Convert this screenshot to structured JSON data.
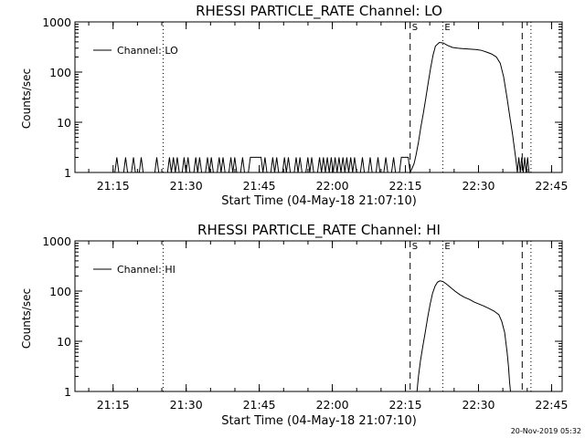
{
  "footer": {
    "timestamp": "20-Nov-2019 05:32"
  },
  "chart_data": [
    {
      "type": "line",
      "title": "RHESSI PARTICLE_RATE Channel: LO",
      "xlabel": "Start Time (04-May-18 21:07:10)",
      "ylabel": "Counts/sec",
      "x_unit": "minutes after 21:07:10",
      "xlim": [
        0,
        100
      ],
      "ylim": [
        1,
        1000
      ],
      "y_scale": "log",
      "x_tick_labels": [
        "21:15",
        "21:30",
        "21:45",
        "22:00",
        "22:15",
        "22:30",
        "22:45"
      ],
      "x_tick_minutes": [
        7.83,
        22.83,
        37.83,
        52.83,
        67.83,
        82.83,
        97.83
      ],
      "y_tick_labels": [
        "1",
        "10",
        "100",
        "1000"
      ],
      "y_tick_values": [
        1,
        10,
        100,
        1000
      ],
      "legend": {
        "label": "Channel: LO",
        "position": "top-left"
      },
      "markers": [
        {
          "label": "S",
          "x": 68.8,
          "style": "dashed"
        },
        {
          "label": "E",
          "x": 75.5,
          "style": "dotted"
        },
        {
          "label": "",
          "x": 91.8,
          "style": "dashed"
        },
        {
          "label": "",
          "x": 93.6,
          "style": "dotted"
        },
        {
          "label": "",
          "x": 18.1,
          "style": "dotted"
        }
      ],
      "series": [
        {
          "name": "Channel: LO",
          "color": "#000000",
          "points": [
            [
              0,
              1
            ],
            [
              8.2,
              1
            ],
            [
              8.6,
              2
            ],
            [
              9.0,
              1
            ],
            [
              10.0,
              1
            ],
            [
              10.4,
              2
            ],
            [
              10.8,
              1
            ],
            [
              11.6,
              1
            ],
            [
              12.0,
              2
            ],
            [
              12.4,
              1
            ],
            [
              13.2,
              1
            ],
            [
              13.6,
              2
            ],
            [
              14.0,
              1
            ],
            [
              16.4,
              1
            ],
            [
              16.8,
              2
            ],
            [
              17.2,
              1
            ],
            [
              19.0,
              1
            ],
            [
              19.4,
              2
            ],
            [
              19.8,
              1
            ],
            [
              20.2,
              2
            ],
            [
              20.6,
              1
            ],
            [
              21.0,
              2
            ],
            [
              21.4,
              1
            ],
            [
              22.0,
              1
            ],
            [
              22.4,
              2
            ],
            [
              22.8,
              1
            ],
            [
              23.2,
              2
            ],
            [
              23.6,
              1
            ],
            [
              24.4,
              1
            ],
            [
              24.8,
              2
            ],
            [
              25.2,
              1
            ],
            [
              25.6,
              2
            ],
            [
              26.0,
              1
            ],
            [
              26.8,
              1
            ],
            [
              27.2,
              2
            ],
            [
              27.6,
              1
            ],
            [
              28.0,
              2
            ],
            [
              28.4,
              1
            ],
            [
              29.2,
              1
            ],
            [
              29.6,
              2
            ],
            [
              30.0,
              1
            ],
            [
              30.4,
              2
            ],
            [
              30.8,
              1
            ],
            [
              31.6,
              1
            ],
            [
              32.0,
              2
            ],
            [
              32.4,
              1
            ],
            [
              32.8,
              2
            ],
            [
              33.2,
              1
            ],
            [
              34.0,
              1
            ],
            [
              34.4,
              2
            ],
            [
              34.8,
              1
            ],
            [
              35.6,
              1
            ],
            [
              36.0,
              2
            ],
            [
              38.2,
              2
            ],
            [
              38.6,
              1
            ],
            [
              39.0,
              2
            ],
            [
              39.4,
              1
            ],
            [
              40.2,
              1
            ],
            [
              40.6,
              2
            ],
            [
              41.0,
              1
            ],
            [
              41.4,
              2
            ],
            [
              41.8,
              1
            ],
            [
              42.6,
              1
            ],
            [
              43.0,
              2
            ],
            [
              43.4,
              1
            ],
            [
              43.8,
              2
            ],
            [
              44.2,
              1
            ],
            [
              45.0,
              1
            ],
            [
              45.4,
              2
            ],
            [
              45.8,
              1
            ],
            [
              46.2,
              2
            ],
            [
              46.6,
              1
            ],
            [
              47.4,
              1
            ],
            [
              47.8,
              2
            ],
            [
              48.2,
              1
            ],
            [
              48.6,
              2
            ],
            [
              49.0,
              1
            ],
            [
              49.8,
              1
            ],
            [
              50.2,
              2
            ],
            [
              50.6,
              1
            ],
            [
              51.0,
              2
            ],
            [
              51.4,
              1
            ],
            [
              51.8,
              2
            ],
            [
              52.2,
              1
            ],
            [
              52.6,
              2
            ],
            [
              53.0,
              1
            ],
            [
              53.4,
              2
            ],
            [
              53.8,
              1
            ],
            [
              54.2,
              2
            ],
            [
              54.6,
              1
            ],
            [
              55.0,
              2
            ],
            [
              55.4,
              1
            ],
            [
              55.8,
              2
            ],
            [
              56.2,
              1
            ],
            [
              56.6,
              2
            ],
            [
              57.0,
              1
            ],
            [
              57.4,
              2
            ],
            [
              57.8,
              1
            ],
            [
              58.6,
              1
            ],
            [
              59.0,
              2
            ],
            [
              59.4,
              1
            ],
            [
              60.2,
              1
            ],
            [
              60.6,
              2
            ],
            [
              61.0,
              1
            ],
            [
              61.8,
              1
            ],
            [
              62.2,
              2
            ],
            [
              62.6,
              1
            ],
            [
              63.4,
              1
            ],
            [
              63.8,
              2
            ],
            [
              64.2,
              1
            ],
            [
              65.0,
              1
            ],
            [
              65.4,
              2
            ],
            [
              65.8,
              1
            ],
            [
              66.6,
              1
            ],
            [
              67.0,
              2
            ],
            [
              68.4,
              2
            ],
            [
              68.8,
              1
            ],
            [
              69.2,
              1.2
            ],
            [
              69.6,
              1.5
            ],
            [
              70.0,
              2.2
            ],
            [
              70.5,
              4
            ],
            [
              71.0,
              8
            ],
            [
              71.5,
              15
            ],
            [
              72.0,
              30
            ],
            [
              72.5,
              60
            ],
            [
              73.0,
              120
            ],
            [
              73.5,
              220
            ],
            [
              74.0,
              330
            ],
            [
              74.8,
              390
            ],
            [
              75.6,
              380
            ],
            [
              76.5,
              340
            ],
            [
              77.5,
              310
            ],
            [
              78.5,
              300
            ],
            [
              79.5,
              295
            ],
            [
              80.5,
              290
            ],
            [
              81.5,
              285
            ],
            [
              82.5,
              280
            ],
            [
              83.5,
              270
            ],
            [
              84.5,
              250
            ],
            [
              85.5,
              230
            ],
            [
              86.5,
              200
            ],
            [
              87.3,
              150
            ],
            [
              88.0,
              80
            ],
            [
              88.7,
              30
            ],
            [
              89.3,
              12
            ],
            [
              89.8,
              6
            ],
            [
              90.2,
              3
            ],
            [
              90.5,
              1.8
            ],
            [
              90.8,
              1
            ],
            [
              91.1,
              2
            ],
            [
              91.4,
              1
            ],
            [
              91.7,
              2
            ],
            [
              92.0,
              1
            ],
            [
              92.3,
              2
            ],
            [
              92.6,
              1
            ],
            [
              92.9,
              2
            ],
            [
              93.2,
              1
            ]
          ]
        }
      ]
    },
    {
      "type": "line",
      "title": "RHESSI PARTICLE_RATE Channel: HI",
      "xlabel": "Start Time (04-May-18 21:07:10)",
      "ylabel": "Counts/sec",
      "x_unit": "minutes after 21:07:10",
      "xlim": [
        0,
        100
      ],
      "ylim": [
        1,
        1000
      ],
      "y_scale": "log",
      "x_tick_labels": [
        "21:15",
        "21:30",
        "21:45",
        "22:00",
        "22:15",
        "22:30",
        "22:45"
      ],
      "x_tick_minutes": [
        7.83,
        22.83,
        37.83,
        52.83,
        67.83,
        82.83,
        97.83
      ],
      "y_tick_labels": [
        "1",
        "10",
        "100",
        "1000"
      ],
      "y_tick_values": [
        1,
        10,
        100,
        1000
      ],
      "legend": {
        "label": "Channel: HI",
        "position": "top-left"
      },
      "markers": [
        {
          "label": "S",
          "x": 68.8,
          "style": "dashed"
        },
        {
          "label": "E",
          "x": 75.5,
          "style": "dotted"
        },
        {
          "label": "",
          "x": 91.8,
          "style": "dashed"
        },
        {
          "label": "",
          "x": 93.6,
          "style": "dotted"
        },
        {
          "label": "",
          "x": 18.1,
          "style": "dotted"
        }
      ],
      "series": [
        {
          "name": "Channel: HI",
          "color": "#000000",
          "points": [
            [
              70.2,
              1
            ],
            [
              70.5,
              2
            ],
            [
              70.9,
              4
            ],
            [
              71.4,
              8
            ],
            [
              71.9,
              15
            ],
            [
              72.4,
              30
            ],
            [
              72.9,
              55
            ],
            [
              73.4,
              90
            ],
            [
              73.9,
              125
            ],
            [
              74.4,
              150
            ],
            [
              74.9,
              160
            ],
            [
              75.5,
              155
            ],
            [
              76.2,
              140
            ],
            [
              77.0,
              120
            ],
            [
              78.0,
              100
            ],
            [
              79.0,
              85
            ],
            [
              80.0,
              75
            ],
            [
              81.0,
              68
            ],
            [
              82.0,
              60
            ],
            [
              83.0,
              55
            ],
            [
              84.0,
              50
            ],
            [
              85.0,
              45
            ],
            [
              86.0,
              40
            ],
            [
              87.0,
              34
            ],
            [
              87.6,
              25
            ],
            [
              88.2,
              15
            ],
            [
              88.7,
              6
            ],
            [
              89.0,
              3
            ],
            [
              89.2,
              1.6
            ],
            [
              89.4,
              1
            ]
          ]
        }
      ]
    }
  ]
}
